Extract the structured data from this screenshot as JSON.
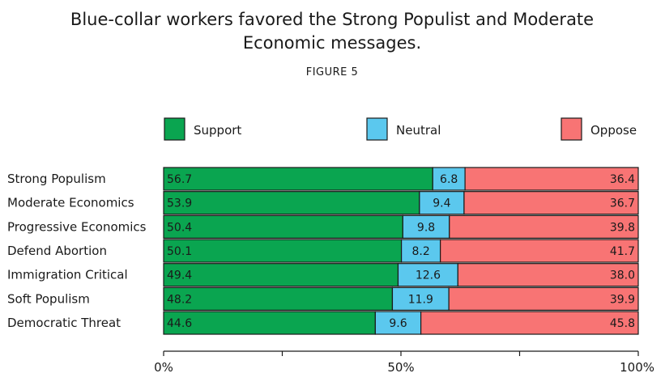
{
  "chart_data": {
    "type": "bar",
    "orientation": "horizontal",
    "stacked": true,
    "title": "Blue-collar workers favored the Strong Populist and Moderate Economic messages.",
    "title_lines": [
      "Blue-collar workers favored the Strong Populist and Moderate",
      "Economic messages."
    ],
    "subtitle": "FIGURE 5",
    "categories": [
      "Strong Populism",
      "Moderate Economics",
      "Progressive Economics",
      "Defend Abortion",
      "Immigration Critical",
      "Soft Populism",
      "Democratic Threat"
    ],
    "series": [
      {
        "name": "Support",
        "color": "#0aa550",
        "values": [
          56.7,
          53.9,
          50.4,
          50.1,
          49.4,
          48.2,
          44.6
        ]
      },
      {
        "name": "Neutral",
        "color": "#5bc8ee",
        "values": [
          6.8,
          9.4,
          9.8,
          8.2,
          12.6,
          11.9,
          9.6
        ]
      },
      {
        "name": "Oppose",
        "color": "#f87474",
        "values": [
          36.4,
          36.7,
          39.8,
          41.7,
          38.0,
          39.9,
          45.8
        ]
      }
    ],
    "xlim": [
      0,
      100
    ],
    "x_ticks": [
      0,
      25,
      50,
      75,
      100
    ],
    "x_tick_labels": [
      "0%",
      "",
      "50%",
      "",
      "100%"
    ],
    "legend_position": "top",
    "grid": false
  }
}
